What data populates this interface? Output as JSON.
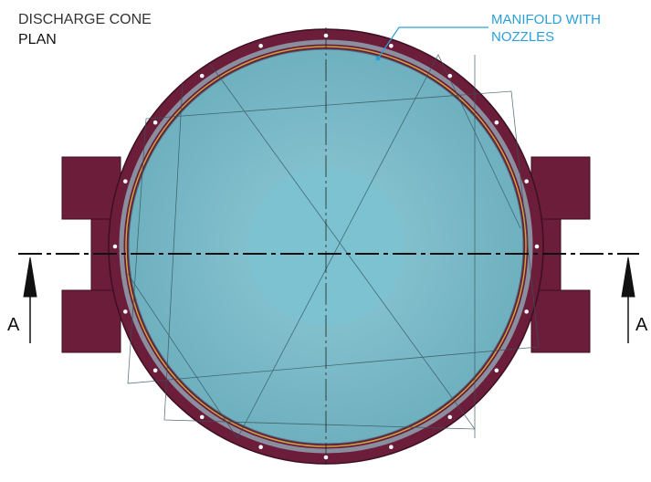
{
  "title": {
    "line1": "DISCHARGE CONE",
    "line2": "PLAN"
  },
  "callout": {
    "lines": [
      "MANIFOLD WITH",
      "NOZZLES"
    ]
  },
  "section_labels": [
    "A",
    "A"
  ]
}
